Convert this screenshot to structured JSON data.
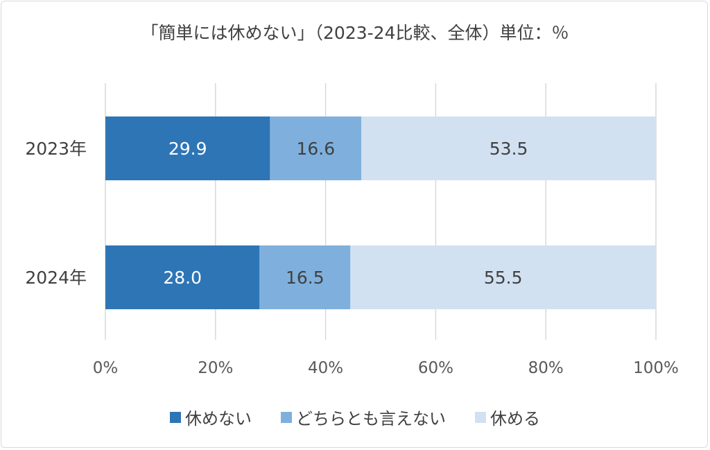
{
  "chart_data": {
    "type": "bar",
    "orientation": "horizontal",
    "stacked": "percent",
    "title": "「簡単には休めない」（2023-24比較、全体）単位：％",
    "categories": [
      "2023年",
      "2024年"
    ],
    "series": [
      {
        "name": "休めない",
        "values": [
          29.9,
          28.0
        ],
        "color": "#2e75b6",
        "label_color": "#ffffff"
      },
      {
        "name": "どちらとも言えない",
        "values": [
          16.6,
          16.5
        ],
        "color": "#7fb0dd",
        "label_color": "#404040"
      },
      {
        "name": "休める",
        "values": [
          53.5,
          55.5
        ],
        "color": "#d2e1f1",
        "label_color": "#404040"
      }
    ],
    "xlim": [
      0,
      100
    ],
    "xticks": [
      "0%",
      "20%",
      "40%",
      "60%",
      "80%",
      "100%"
    ],
    "grid": true,
    "legend_position": "bottom"
  }
}
